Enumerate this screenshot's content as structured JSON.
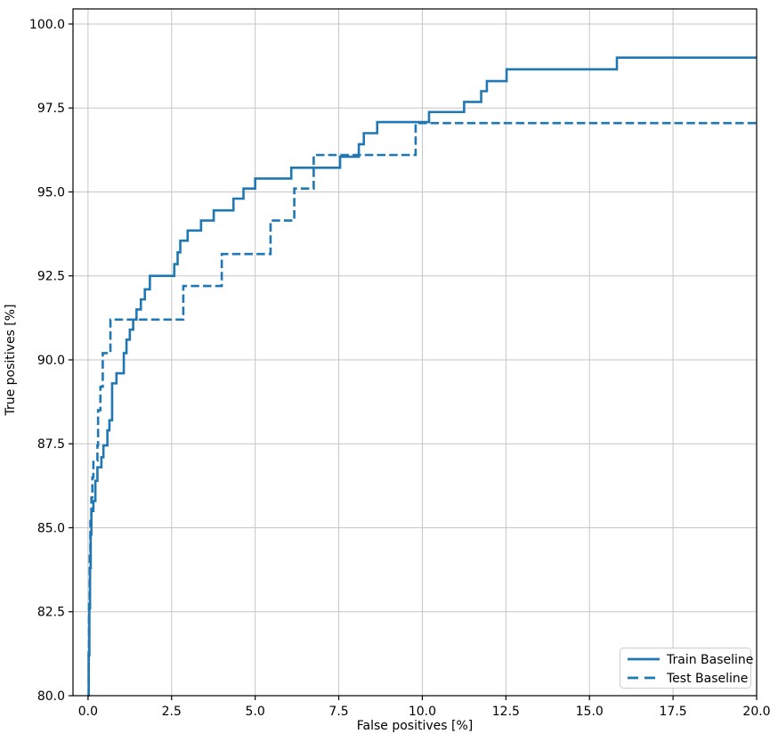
{
  "figure": {
    "background": "#ffffff"
  },
  "chart_data": {
    "type": "line",
    "subtype": "roc-step-curves",
    "title": "",
    "xlabel": "False positives [%]",
    "ylabel": "True positives [%]",
    "xlim": [
      -0.45,
      20.0
    ],
    "ylim": [
      80.0,
      100.45
    ],
    "xticks": [
      0.0,
      2.5,
      5.0,
      7.5,
      10.0,
      12.5,
      15.0,
      17.5,
      20.0
    ],
    "xtick_labels": [
      "0.0",
      "2.5",
      "5.0",
      "7.5",
      "10.0",
      "12.5",
      "15.0",
      "17.5",
      "20.0"
    ],
    "yticks": [
      80.0,
      82.5,
      85.0,
      87.5,
      90.0,
      92.5,
      95.0,
      97.5,
      100.0
    ],
    "ytick_labels": [
      "80.0",
      "82.5",
      "85.0",
      "87.5",
      "90.0",
      "92.5",
      "95.0",
      "97.5",
      "100.0"
    ],
    "grid": true,
    "grid_color": "#c6c6c6",
    "spine_color": "#000000",
    "accent_color": "#1f77b4",
    "drawstyle": "steps-post",
    "legend": {
      "position": "lower-right",
      "entries": [
        "Train Baseline",
        "Test Baseline"
      ]
    },
    "series": [
      {
        "name": "Train Baseline",
        "line_style": "solid",
        "color": "#1f77b4",
        "points": [
          [
            0.0,
            80.0
          ],
          [
            0.02,
            81.2
          ],
          [
            0.04,
            82.6
          ],
          [
            0.06,
            83.8
          ],
          [
            0.08,
            84.8
          ],
          [
            0.1,
            85.5
          ],
          [
            0.16,
            85.8
          ],
          [
            0.22,
            86.4
          ],
          [
            0.28,
            86.8
          ],
          [
            0.4,
            87.1
          ],
          [
            0.46,
            87.45
          ],
          [
            0.58,
            87.9
          ],
          [
            0.64,
            88.2
          ],
          [
            0.72,
            89.3
          ],
          [
            0.85,
            89.6
          ],
          [
            1.07,
            90.2
          ],
          [
            1.15,
            90.6
          ],
          [
            1.25,
            90.9
          ],
          [
            1.35,
            91.2
          ],
          [
            1.45,
            91.5
          ],
          [
            1.58,
            91.8
          ],
          [
            1.7,
            92.1
          ],
          [
            1.85,
            92.5
          ],
          [
            2.58,
            92.85
          ],
          [
            2.68,
            93.2
          ],
          [
            2.76,
            93.55
          ],
          [
            2.98,
            93.85
          ],
          [
            3.38,
            94.15
          ],
          [
            3.76,
            94.45
          ],
          [
            4.35,
            94.8
          ],
          [
            4.65,
            95.1
          ],
          [
            5.0,
            95.4
          ],
          [
            6.08,
            95.72
          ],
          [
            7.54,
            96.05
          ],
          [
            8.1,
            96.42
          ],
          [
            8.25,
            96.75
          ],
          [
            8.65,
            97.08
          ],
          [
            10.2,
            97.38
          ],
          [
            11.25,
            97.68
          ],
          [
            11.76,
            98.0
          ],
          [
            11.93,
            98.3
          ],
          [
            12.52,
            98.65
          ],
          [
            15.82,
            99.0
          ],
          [
            20.0,
            99.0
          ]
        ]
      },
      {
        "name": "Test Baseline",
        "line_style": "dashed",
        "color": "#1f77b4",
        "points": [
          [
            0.0,
            80.0
          ],
          [
            0.02,
            81.4
          ],
          [
            0.03,
            82.8
          ],
          [
            0.05,
            84.2
          ],
          [
            0.07,
            85.2
          ],
          [
            0.1,
            85.9
          ],
          [
            0.13,
            86.5
          ],
          [
            0.16,
            87.0
          ],
          [
            0.28,
            87.45
          ],
          [
            0.3,
            88.5
          ],
          [
            0.37,
            89.2
          ],
          [
            0.44,
            90.2
          ],
          [
            0.67,
            91.2
          ],
          [
            2.85,
            92.2
          ],
          [
            4.0,
            93.15
          ],
          [
            5.46,
            94.15
          ],
          [
            6.17,
            95.1
          ],
          [
            6.75,
            96.1
          ],
          [
            9.8,
            97.05
          ],
          [
            20.0,
            97.05
          ]
        ]
      }
    ]
  }
}
